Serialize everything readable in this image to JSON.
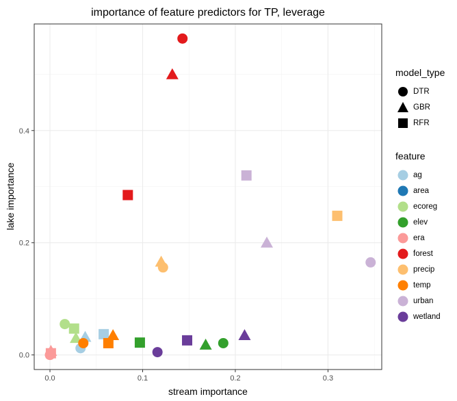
{
  "chart_data": {
    "type": "scatter",
    "title": "importance of feature predictors for TP, leverage",
    "xlabel": "stream importance",
    "ylabel": "lake importance",
    "xlim": [
      -0.017,
      0.358
    ],
    "ylim": [
      -0.026,
      0.59
    ],
    "xticks": [
      0.0,
      0.1,
      0.2,
      0.3
    ],
    "yticks": [
      0.0,
      0.2,
      0.4
    ],
    "xtick_labels": [
      "0.0",
      "0.1",
      "0.2",
      "0.3"
    ],
    "ytick_labels": [
      "0.0",
      "0.2",
      "0.4"
    ],
    "grid": true,
    "legend_placement": "right",
    "shape_legend": {
      "title": "model_type",
      "items": [
        {
          "label": "DTR",
          "shape": "circle"
        },
        {
          "label": "GBR",
          "shape": "triangle"
        },
        {
          "label": "RFR",
          "shape": "square"
        }
      ]
    },
    "color_legend": {
      "title": "feature",
      "items": [
        {
          "label": "ag",
          "color": "#A6CEE3"
        },
        {
          "label": "area",
          "color": "#1F78B4"
        },
        {
          "label": "ecoreg",
          "color": "#B2DF8A"
        },
        {
          "label": "elev",
          "color": "#33A02C"
        },
        {
          "label": "era",
          "color": "#FB9A99"
        },
        {
          "label": "forest",
          "color": "#E31A1C"
        },
        {
          "label": "precip",
          "color": "#FDBF6F"
        },
        {
          "label": "temp",
          "color": "#FF7F00"
        },
        {
          "label": "urban",
          "color": "#CAB2D6"
        },
        {
          "label": "wetland",
          "color": "#6A3D9A"
        }
      ]
    },
    "points": [
      {
        "feature": "forest",
        "model_type": "DTR",
        "x": 0.143,
        "y": 0.564
      },
      {
        "feature": "forest",
        "model_type": "GBR",
        "x": 0.132,
        "y": 0.5
      },
      {
        "feature": "forest",
        "model_type": "RFR",
        "x": 0.084,
        "y": 0.285
      },
      {
        "feature": "urban",
        "model_type": "RFR",
        "x": 0.212,
        "y": 0.32
      },
      {
        "feature": "precip",
        "model_type": "RFR",
        "x": 0.31,
        "y": 0.248
      },
      {
        "feature": "urban",
        "model_type": "GBR",
        "x": 0.234,
        "y": 0.2
      },
      {
        "feature": "urban",
        "model_type": "DTR",
        "x": 0.346,
        "y": 0.165
      },
      {
        "feature": "precip",
        "model_type": "GBR",
        "x": 0.12,
        "y": 0.166
      },
      {
        "feature": "precip",
        "model_type": "DTR",
        "x": 0.122,
        "y": 0.156
      },
      {
        "feature": "ecoreg",
        "model_type": "DTR",
        "x": 0.016,
        "y": 0.055
      },
      {
        "feature": "ecoreg",
        "model_type": "RFR",
        "x": 0.026,
        "y": 0.047
      },
      {
        "feature": "ecoreg",
        "model_type": "GBR",
        "x": 0.028,
        "y": 0.03
      },
      {
        "feature": "ag",
        "model_type": "GBR",
        "x": 0.038,
        "y": 0.032
      },
      {
        "feature": "ag",
        "model_type": "RFR",
        "x": 0.058,
        "y": 0.037
      },
      {
        "feature": "ag",
        "model_type": "DTR",
        "x": 0.033,
        "y": 0.012
      },
      {
        "feature": "temp",
        "model_type": "DTR",
        "x": 0.036,
        "y": 0.021
      },
      {
        "feature": "temp",
        "model_type": "GBR",
        "x": 0.068,
        "y": 0.035
      },
      {
        "feature": "temp",
        "model_type": "RFR",
        "x": 0.063,
        "y": 0.021
      },
      {
        "feature": "elev",
        "model_type": "RFR",
        "x": 0.097,
        "y": 0.022
      },
      {
        "feature": "elev",
        "model_type": "GBR",
        "x": 0.168,
        "y": 0.018
      },
      {
        "feature": "elev",
        "model_type": "DTR",
        "x": 0.187,
        "y": 0.021
      },
      {
        "feature": "wetland",
        "model_type": "DTR",
        "x": 0.116,
        "y": 0.005
      },
      {
        "feature": "wetland",
        "model_type": "RFR",
        "x": 0.148,
        "y": 0.026
      },
      {
        "feature": "wetland",
        "model_type": "GBR",
        "x": 0.21,
        "y": 0.035
      },
      {
        "feature": "era",
        "model_type": "GBR",
        "x": 0.001,
        "y": 0.007
      },
      {
        "feature": "era",
        "model_type": "RFR",
        "x": 0.001,
        "y": 0.003
      },
      {
        "feature": "era",
        "model_type": "DTR",
        "x": 0.0,
        "y": 0.0
      }
    ]
  }
}
